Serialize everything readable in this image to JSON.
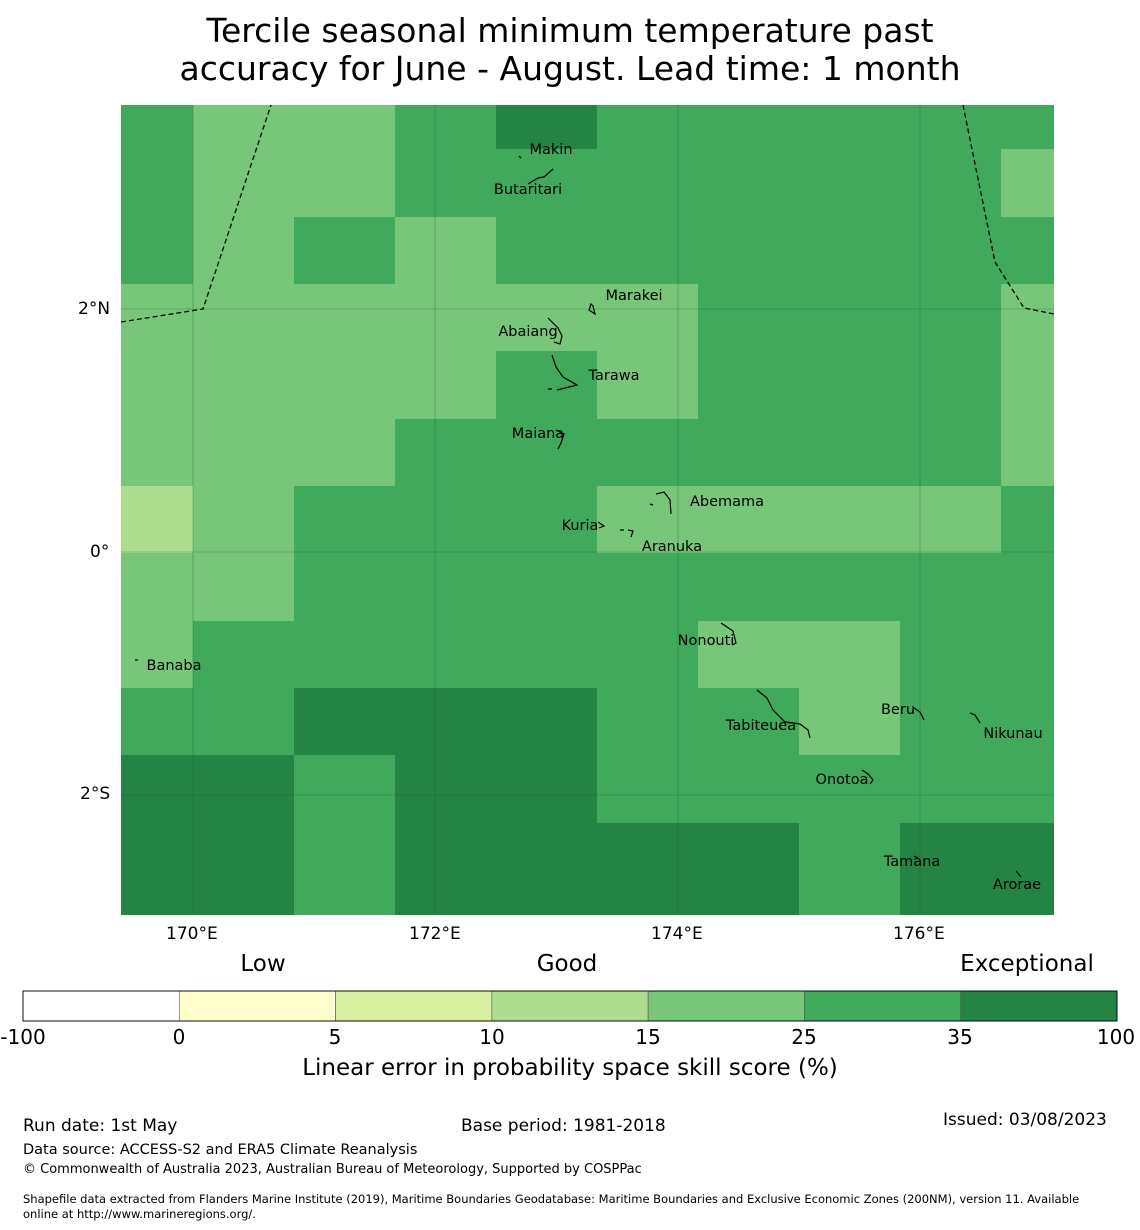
{
  "title": {
    "line1": "Tercile seasonal minimum temperature past",
    "line2": "accuracy for June - August. Lead time: 1 month"
  },
  "map": {
    "lon_ticks": [
      "170°E",
      "172°E",
      "174°E",
      "176°E"
    ],
    "lat_ticks": [
      "2°N",
      "0°",
      "2°S"
    ],
    "grid_colors": [
      [
        "#41a95b",
        "#78c679",
        "#78c679",
        "#41a95b",
        "#238443",
        "#41a95b",
        "#41a95b",
        "#41a95b",
        "#41a95b",
        "#41a95b"
      ],
      [
        "#41a95b",
        "#78c679",
        "#78c679",
        "#41a95b",
        "#41a95b",
        "#41a95b",
        "#41a95b",
        "#41a95b",
        "#41a95b",
        "#78c679"
      ],
      [
        "#41a95b",
        "#78c679",
        "#41a95b",
        "#78c679",
        "#41a95b",
        "#41a95b",
        "#41a95b",
        "#41a95b",
        "#41a95b",
        "#41a95b"
      ],
      [
        "#78c679",
        "#78c679",
        "#78c679",
        "#78c679",
        "#78c679",
        "#78c679",
        "#41a95b",
        "#41a95b",
        "#41a95b",
        "#78c679"
      ],
      [
        "#78c679",
        "#78c679",
        "#78c679",
        "#78c679",
        "#41a95b",
        "#78c679",
        "#41a95b",
        "#41a95b",
        "#41a95b",
        "#78c679"
      ],
      [
        "#78c679",
        "#78c679",
        "#78c679",
        "#41a95b",
        "#41a95b",
        "#41a95b",
        "#41a95b",
        "#41a95b",
        "#41a95b",
        "#78c679"
      ],
      [
        "#addd8e",
        "#78c679",
        "#41a95b",
        "#41a95b",
        "#41a95b",
        "#78c679",
        "#78c679",
        "#78c679",
        "#78c679",
        "#41a95b"
      ],
      [
        "#78c679",
        "#78c679",
        "#41a95b",
        "#41a95b",
        "#41a95b",
        "#41a95b",
        "#41a95b",
        "#41a95b",
        "#41a95b",
        "#41a95b"
      ],
      [
        "#78c679",
        "#41a95b",
        "#41a95b",
        "#41a95b",
        "#41a95b",
        "#41a95b",
        "#78c679",
        "#78c679",
        "#41a95b",
        "#41a95b"
      ],
      [
        "#41a95b",
        "#41a95b",
        "#238443",
        "#238443",
        "#238443",
        "#41a95b",
        "#41a95b",
        "#78c679",
        "#41a95b",
        "#41a95b"
      ],
      [
        "#238443",
        "#238443",
        "#41a95b",
        "#238443",
        "#238443",
        "#41a95b",
        "#41a95b",
        "#41a95b",
        "#41a95b",
        "#41a95b"
      ],
      [
        "#238443",
        "#238443",
        "#41a95b",
        "#238443",
        "#238443",
        "#238443",
        "#238443",
        "#41a95b",
        "#238443",
        "#238443"
      ]
    ],
    "places": [
      "Makin",
      "Butaritari",
      "Marakei",
      "Abaiang",
      "Tarawa",
      "Maiana",
      "Abemama",
      "Kuria",
      "Aranuka",
      "Nonouti",
      "Banaba",
      "Beru",
      "Tabiteuea",
      "Nikunau",
      "Onotoa",
      "Tamana",
      "Arorae"
    ]
  },
  "colorbar": {
    "categories": [
      "Low",
      "Good",
      "Exceptional"
    ],
    "colors": [
      "#ffffff",
      "#ffffcc",
      "#d9f0a3",
      "#addd8e",
      "#78c679",
      "#41ab5d",
      "#238443"
    ],
    "ticks": [
      "-100",
      "0",
      "5",
      "10",
      "15",
      "25",
      "35",
      "100"
    ],
    "label": "Linear error in probability space skill score (%)"
  },
  "footer": {
    "run_date": "Run date: 1st May",
    "base_period": "Base period: 1981-2018",
    "issued": "Issued: 03/08/2023",
    "data_source": "Data source: ACCESS-S2 and ERA5 Climate Reanalysis",
    "copyright": "© Commonwealth of Australia 2023, Australian Bureau of Meteorology, Supported by COSPPac",
    "shapefile_line1": "Shapefile data extracted from Flanders Marine Institute (2019), Maritime Boundaries Geodatabase: Maritime Boundaries and Exclusive Economic Zones (200NM), version 11. Available",
    "shapefile_line2": "online at http://www.marineregions.org/."
  }
}
